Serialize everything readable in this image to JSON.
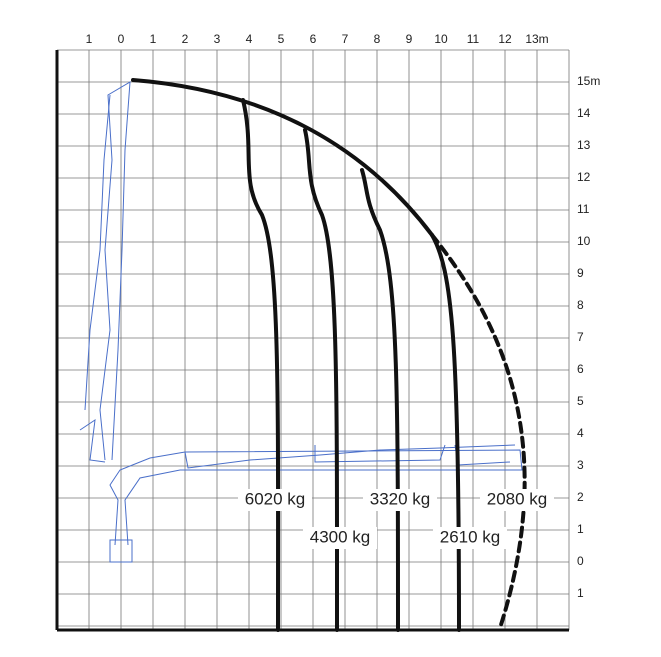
{
  "x_axis_labels": [
    "1",
    "0",
    "1",
    "2",
    "3",
    "4",
    "5",
    "6",
    "7",
    "8",
    "9",
    "10",
    "11",
    "12",
    "13m"
  ],
  "y_axis_labels": [
    "15m",
    "14",
    "13",
    "12",
    "11",
    "10",
    "9",
    "8",
    "7",
    "6",
    "5",
    "4",
    "3",
    "2",
    "1",
    "0",
    "1"
  ],
  "load_labels": [
    "6020 kg",
    "3320 kg",
    "2080 kg",
    "4300 kg",
    "2610 kg"
  ]
}
